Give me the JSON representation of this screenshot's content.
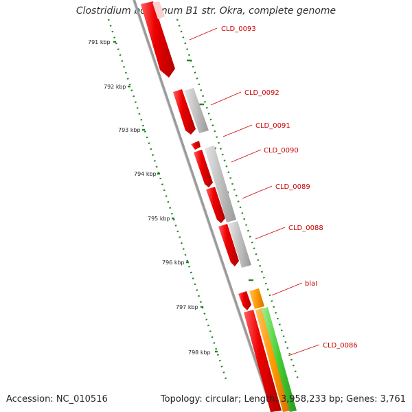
{
  "title": "Clostridium botulinum B1 str. Okra, complete genome",
  "footer": {
    "accession": "Accession: NC_010516",
    "summary": "Topology: circular; Length: 3,958,233 bp; Genes: 3,761"
  },
  "ticks": [
    {
      "label": "791 kbp"
    },
    {
      "label": "792 kbp"
    },
    {
      "label": "793 kbp"
    },
    {
      "label": "794 kbp"
    },
    {
      "label": "795 kbp"
    },
    {
      "label": "796 kbp"
    },
    {
      "label": "797 kbp"
    },
    {
      "label": "798 kbp"
    }
  ],
  "genes": [
    {
      "label": "CLD_0093"
    },
    {
      "label": "CLD_0092"
    },
    {
      "label": "CLD_0091"
    },
    {
      "label": "CLD_0090"
    },
    {
      "label": "CLD_0089"
    },
    {
      "label": "CLD_0088"
    },
    {
      "label": "blaI"
    },
    {
      "label": "CLD_0086"
    }
  ],
  "colors": {
    "cds": "#ee0000",
    "gray_feature": "#bbbbbb",
    "orange_feature": "#ff9900",
    "green_feature": "#44cc33",
    "backbone": "#888888",
    "tick": "#228822",
    "label": "#cc0000"
  }
}
